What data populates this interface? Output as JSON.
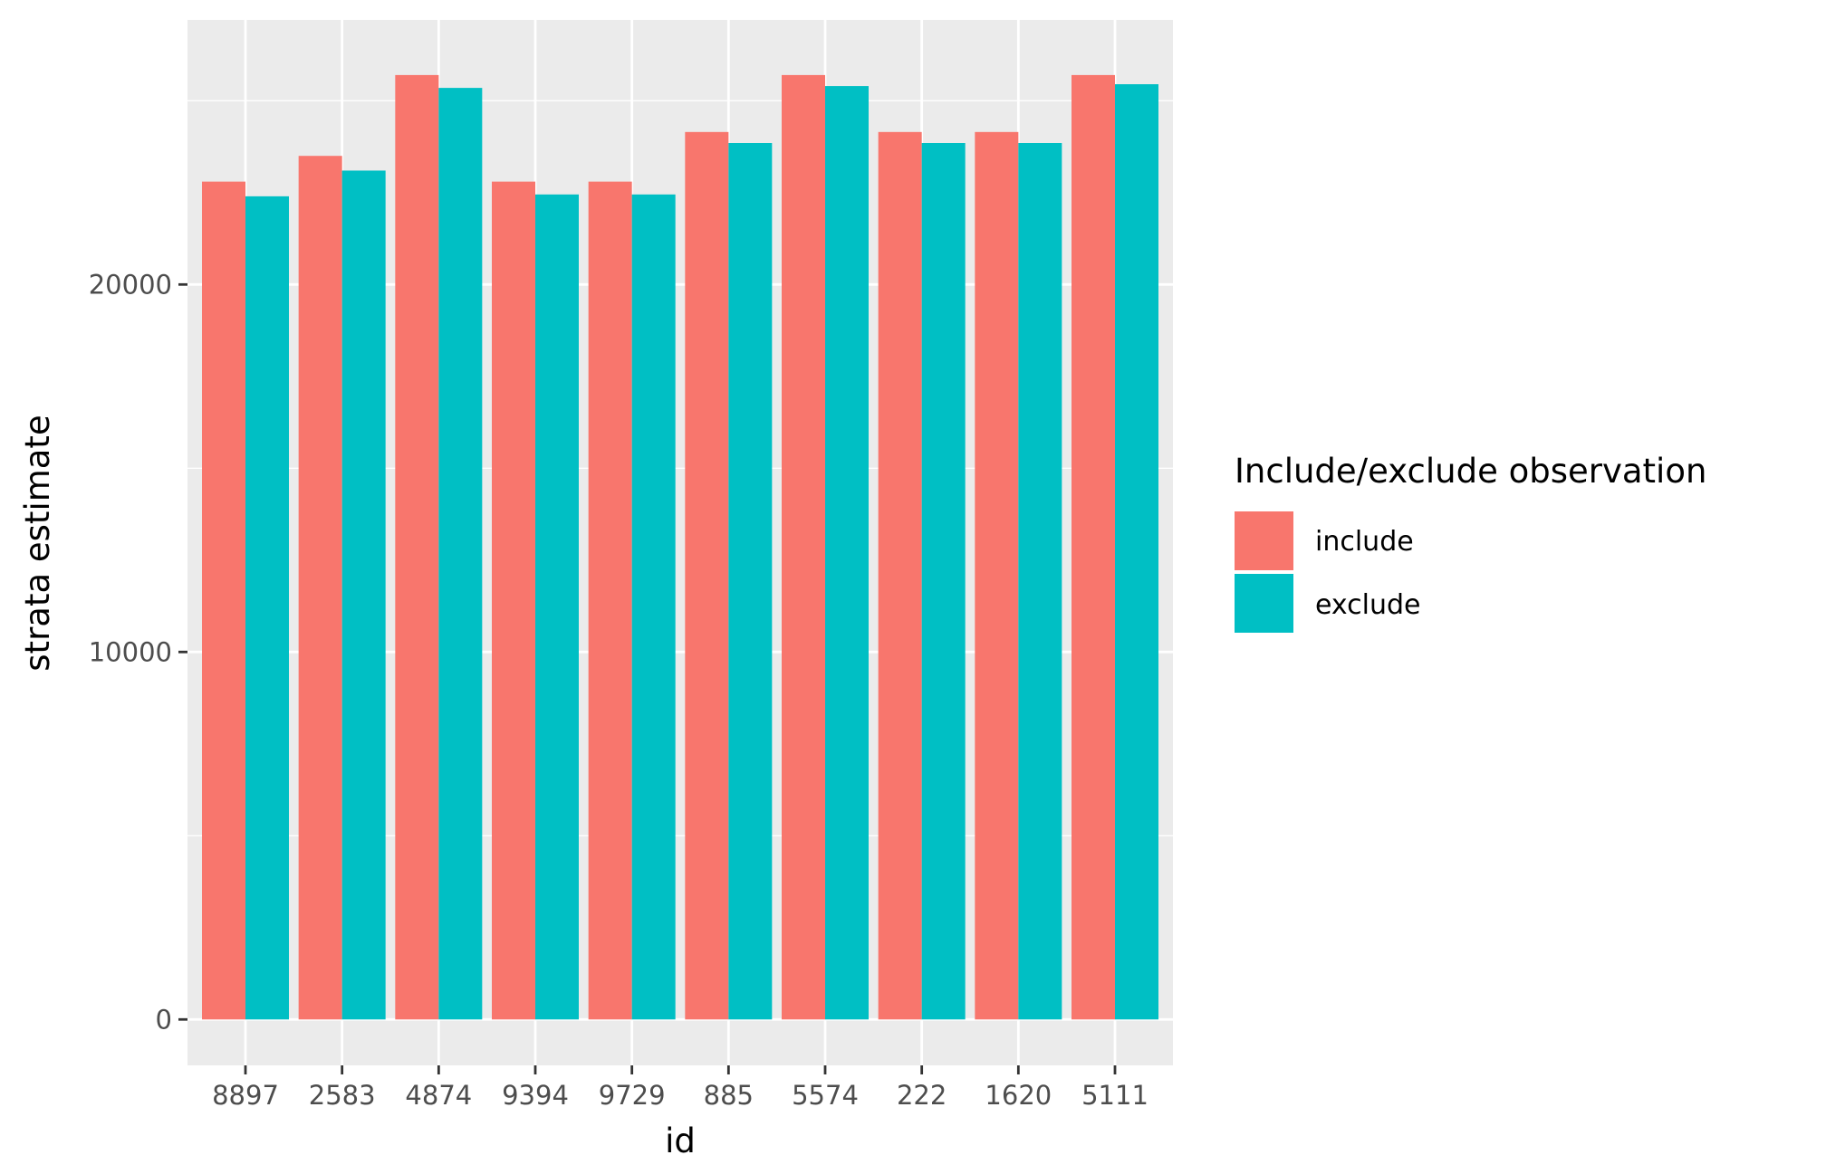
{
  "chart_data": {
    "type": "bar",
    "title": "",
    "xlabel": "id",
    "ylabel": "strata estimate",
    "categories": [
      "8897",
      "2583",
      "4874",
      "9394",
      "9729",
      "885",
      "5574",
      "222",
      "1620",
      "5111"
    ],
    "series": [
      {
        "name": "include",
        "color": "#F8766D",
        "values": [
          22800,
          23500,
          25700,
          22800,
          22800,
          24150,
          25700,
          24150,
          24150,
          25700
        ]
      },
      {
        "name": "exclude",
        "color": "#00BFC4",
        "values": [
          22400,
          23100,
          25350,
          22450,
          22450,
          23850,
          25400,
          23850,
          23850,
          25450
        ]
      }
    ],
    "ylim": [
      -1250,
      27200
    ],
    "yticks": [
      0,
      10000,
      20000
    ],
    "yminor": [
      5000,
      15000,
      25000
    ],
    "grid": true,
    "legend": {
      "title": "Include/exclude observation",
      "position": "right"
    },
    "panel_color": "#EBEBEB"
  }
}
